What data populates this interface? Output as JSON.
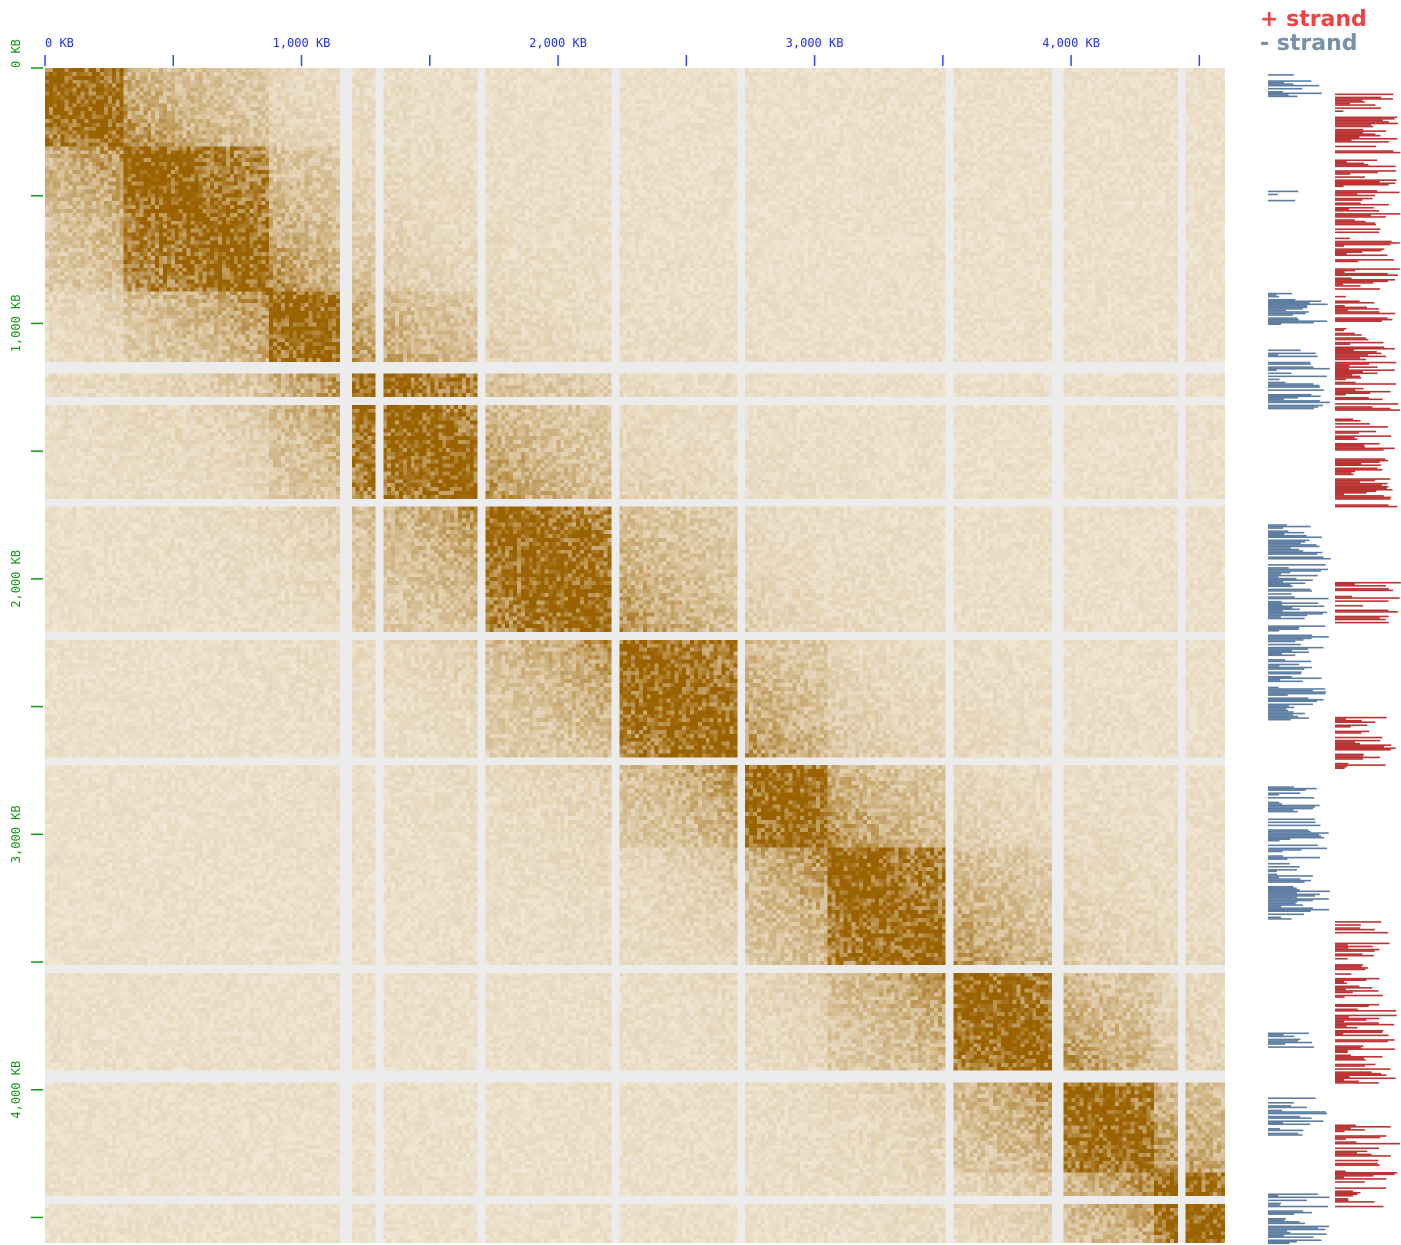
{
  "chart_data": {
    "type": "heatmap",
    "title": "",
    "x_axis": {
      "position": "top",
      "unit": "KB",
      "range_kb": [
        0,
        4600
      ],
      "ticks": [
        {
          "value": 0,
          "label": "0 KB"
        },
        {
          "value": 500,
          "label": ""
        },
        {
          "value": 1000,
          "label": "1,000 KB"
        },
        {
          "value": 1500,
          "label": ""
        },
        {
          "value": 2000,
          "label": "2,000 KB"
        },
        {
          "value": 2500,
          "label": ""
        },
        {
          "value": 3000,
          "label": "3,000 KB"
        },
        {
          "value": 3500,
          "label": ""
        },
        {
          "value": 4000,
          "label": "4,000 KB"
        },
        {
          "value": 4500,
          "label": ""
        }
      ]
    },
    "y_axis": {
      "position": "left",
      "unit": "KB",
      "range_kb": [
        0,
        4600
      ],
      "ticks": [
        {
          "value": 0,
          "label": "0 KB"
        },
        {
          "value": 500,
          "label": ""
        },
        {
          "value": 1000,
          "label": "1,000 KB"
        },
        {
          "value": 1500,
          "label": ""
        },
        {
          "value": 2000,
          "label": "2,000 KB"
        },
        {
          "value": 2500,
          "label": ""
        },
        {
          "value": 3000,
          "label": "3,000 KB"
        },
        {
          "value": 3500,
          "label": ""
        },
        {
          "value": 4000,
          "label": "4,000 KB"
        },
        {
          "value": 4500,
          "label": ""
        }
      ]
    },
    "color_scale": {
      "low": "#f7f1e6",
      "high": "#9b6200",
      "masked": "#ececec"
    },
    "domains_kb": [
      [
        0,
        310
      ],
      [
        310,
        880
      ],
      [
        880,
        1170
      ],
      [
        1170,
        1700
      ],
      [
        1700,
        2220
      ],
      [
        2220,
        2710
      ],
      [
        2710,
        3050
      ],
      [
        3050,
        3530
      ],
      [
        3530,
        3950
      ],
      [
        3950,
        4330
      ],
      [
        4330,
        4600
      ]
    ],
    "masked_bins_kb": [
      1170,
      1300,
      1700,
      2220,
      2710,
      3530,
      3950,
      4430
    ],
    "strand_tracks": {
      "legend": [
        {
          "label": "+ strand",
          "color": "#ee4444"
        },
        {
          "label": "-  strand",
          "color": "#7a8fa8"
        }
      ],
      "plus_color": "#bb3333",
      "minus_color": "#5d7ea2",
      "minus_density_kb": [
        [
          0,
          110
        ],
        [
          480,
          520
        ],
        [
          880,
          1010
        ],
        [
          1090,
          1340
        ],
        [
          1780,
          2560
        ],
        [
          2800,
          3330
        ],
        [
          3770,
          3840
        ],
        [
          4030,
          4180
        ],
        [
          4400,
          4600
        ]
      ],
      "plus_density_kb": [
        [
          100,
          1720
        ],
        [
          2000,
          2170
        ],
        [
          2540,
          2750
        ],
        [
          3340,
          3980
        ],
        [
          4130,
          4460
        ]
      ]
    },
    "grid": false,
    "legend_placement": "top-right"
  }
}
